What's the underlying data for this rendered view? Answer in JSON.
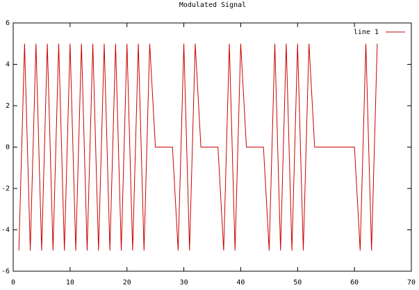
{
  "chart_data": {
    "type": "line",
    "title": "Modulated Signal",
    "x": [
      1,
      2,
      3,
      4,
      5,
      6,
      7,
      8,
      9,
      10,
      11,
      12,
      13,
      14,
      15,
      16,
      17,
      18,
      19,
      20,
      21,
      22,
      23,
      24,
      25,
      26,
      27,
      28,
      29,
      30,
      31,
      32,
      33,
      34,
      35,
      36,
      37,
      38,
      39,
      40,
      41,
      42,
      43,
      44,
      45,
      46,
      47,
      48,
      49,
      50,
      51,
      52,
      53,
      54,
      55,
      56,
      57,
      58,
      59,
      60,
      61,
      62,
      63,
      64
    ],
    "series": [
      {
        "name": "line 1",
        "color": "#cc0000",
        "values": [
          -5,
          5,
          -5,
          5,
          -5,
          5,
          -5,
          5,
          -5,
          5,
          -5,
          5,
          -5,
          5,
          -5,
          5,
          -5,
          5,
          -5,
          5,
          -5,
          5,
          -5,
          5,
          0,
          0,
          0,
          0,
          -5,
          5,
          -5,
          5,
          0,
          0,
          0,
          0,
          -5,
          5,
          -5,
          5,
          0,
          0,
          0,
          0,
          -5,
          5,
          -5,
          5,
          -5,
          5,
          -5,
          5,
          0,
          0,
          0,
          0,
          0,
          0,
          0,
          0,
          -5,
          5,
          -5,
          5
        ]
      }
    ],
    "xlim": [
      0,
      70
    ],
    "xticks": [
      0,
      10,
      20,
      30,
      40,
      50,
      60,
      70
    ],
    "ylim": [
      -6,
      6
    ],
    "yticks": [
      -6,
      -4,
      -2,
      0,
      2,
      4,
      6
    ],
    "grid": false,
    "legend": "top-right"
  }
}
